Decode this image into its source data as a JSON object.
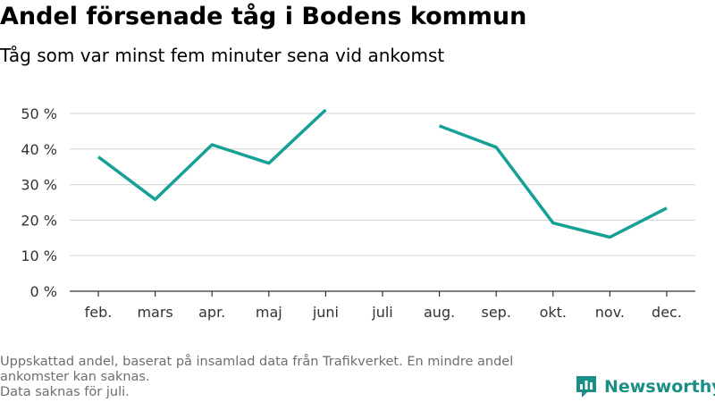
{
  "title": "Andel försenade tåg i Bodens kommun",
  "subtitle": "Tåg som var minst fem minuter sena vid ankomst",
  "footnote": {
    "line1": "Uppskattad andel, baserat på insamlad data från Trafikverket. En mindre andel ankomster kan saknas.",
    "line2": "Data saknas för juli."
  },
  "brand": {
    "name": "Newsworthy",
    "icon": "newsworthy-logo-icon",
    "color": "#1b8f86"
  },
  "chart_data": {
    "type": "line",
    "categories": [
      "feb.",
      "mars",
      "apr.",
      "maj",
      "juni",
      "juli",
      "aug.",
      "sep.",
      "okt.",
      "nov.",
      "dec."
    ],
    "series": [
      {
        "values": [
          37.8,
          25.8,
          41.2,
          36.0,
          51.0,
          null,
          46.5,
          40.5,
          19.2,
          15.2,
          23.4
        ],
        "color": "#17a096"
      }
    ],
    "ylim": [
      0,
      50
    ],
    "yticks": [
      0,
      10,
      20,
      30,
      40,
      50
    ],
    "ytick_labels": [
      "0 %",
      "10 %",
      "20 %",
      "30 %",
      "40 %",
      "50 %"
    ],
    "grid": true,
    "xlabel": "",
    "ylabel": ""
  }
}
